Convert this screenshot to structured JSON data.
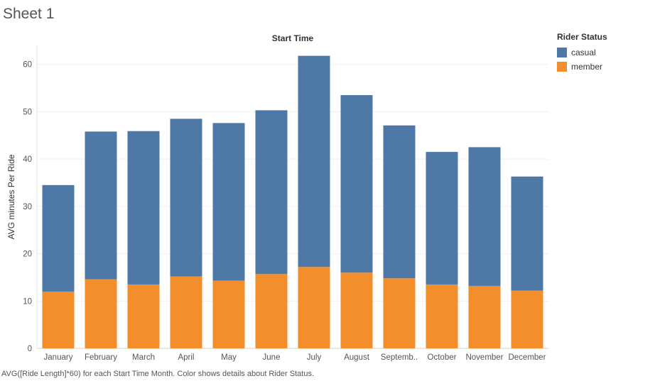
{
  "sheet": {
    "title": "Sheet 1",
    "caption": "AVG([Ride Length]*60) for each Start Time Month.  Color shows details about Rider Status."
  },
  "legend": {
    "title": "Rider Status",
    "items": [
      {
        "label": "casual",
        "color": "#4E79A7"
      },
      {
        "label": "member",
        "color": "#F28E2B"
      }
    ]
  },
  "chart_data": {
    "type": "bar",
    "stacked": true,
    "title": "Start Time",
    "xlabel": "",
    "ylabel": "AVG minutes Per Ride",
    "ylim": [
      0,
      64
    ],
    "yticks": [
      0,
      10,
      20,
      30,
      40,
      50,
      60
    ],
    "categories": [
      "January",
      "February",
      "March",
      "April",
      "May",
      "June",
      "July",
      "August",
      "Septemb..",
      "October",
      "November",
      "December"
    ],
    "series": [
      {
        "name": "member",
        "color": "#F28E2B",
        "values": [
          12.0,
          14.6,
          13.5,
          15.2,
          14.3,
          15.7,
          17.2,
          16.0,
          14.8,
          13.5,
          13.2,
          12.2
        ]
      },
      {
        "name": "casual",
        "color": "#4E79A7",
        "values": [
          22.5,
          31.2,
          32.4,
          33.3,
          33.3,
          34.6,
          44.6,
          37.5,
          32.3,
          28.0,
          29.3,
          24.1
        ]
      }
    ],
    "grid": true,
    "legend_position": "top-right"
  }
}
